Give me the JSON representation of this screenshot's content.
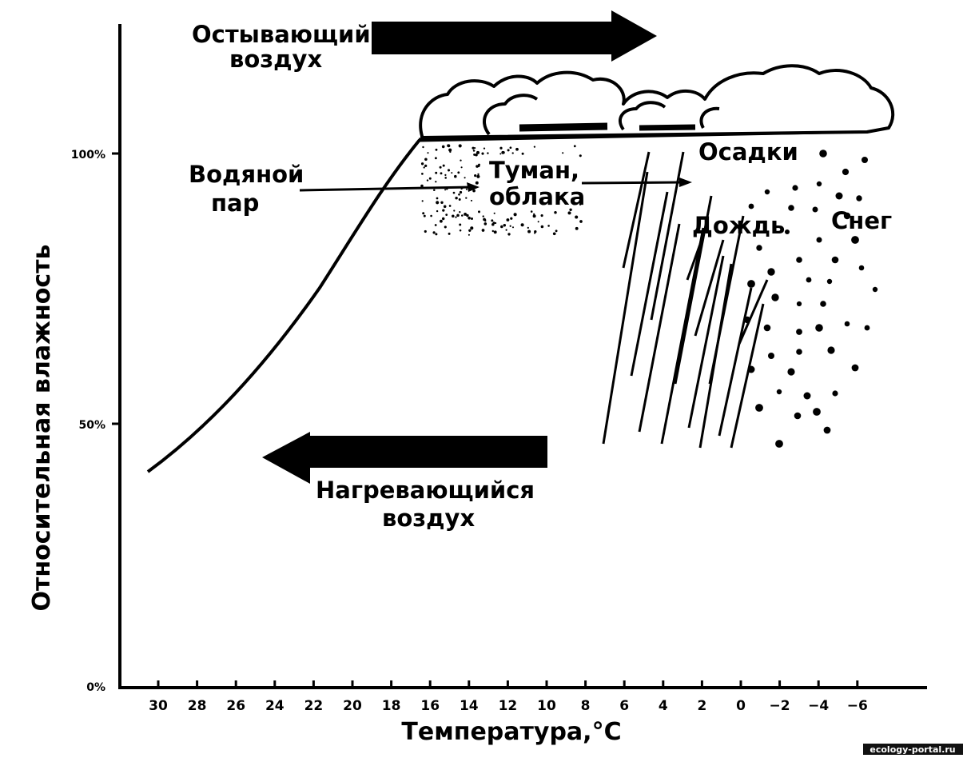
{
  "diagram": {
    "labels": {
      "cooling_air": [
        "Остывающий",
        "воздух"
      ],
      "warming_air": [
        "Нагревающийся",
        "воздух"
      ],
      "water_vapor": [
        "Водяной",
        "пар"
      ],
      "fog_clouds": [
        "Туман,",
        "облака"
      ],
      "precipitation": "Осадки",
      "rain": "Дождь",
      "snow": "Снег"
    },
    "axes": {
      "y_title": "Относительная влажность",
      "x_title": "Температура,°C",
      "y_ticks": [
        "100%",
        "50%",
        "0%"
      ],
      "x_ticks": [
        "30",
        "28",
        "26",
        "24",
        "22",
        "20",
        "18",
        "16",
        "14",
        "12",
        "10",
        "8",
        "6",
        "4",
        "2",
        "0",
        "−2",
        "−4",
        "−6"
      ]
    },
    "credit": "ecology-portal.ru"
  }
}
